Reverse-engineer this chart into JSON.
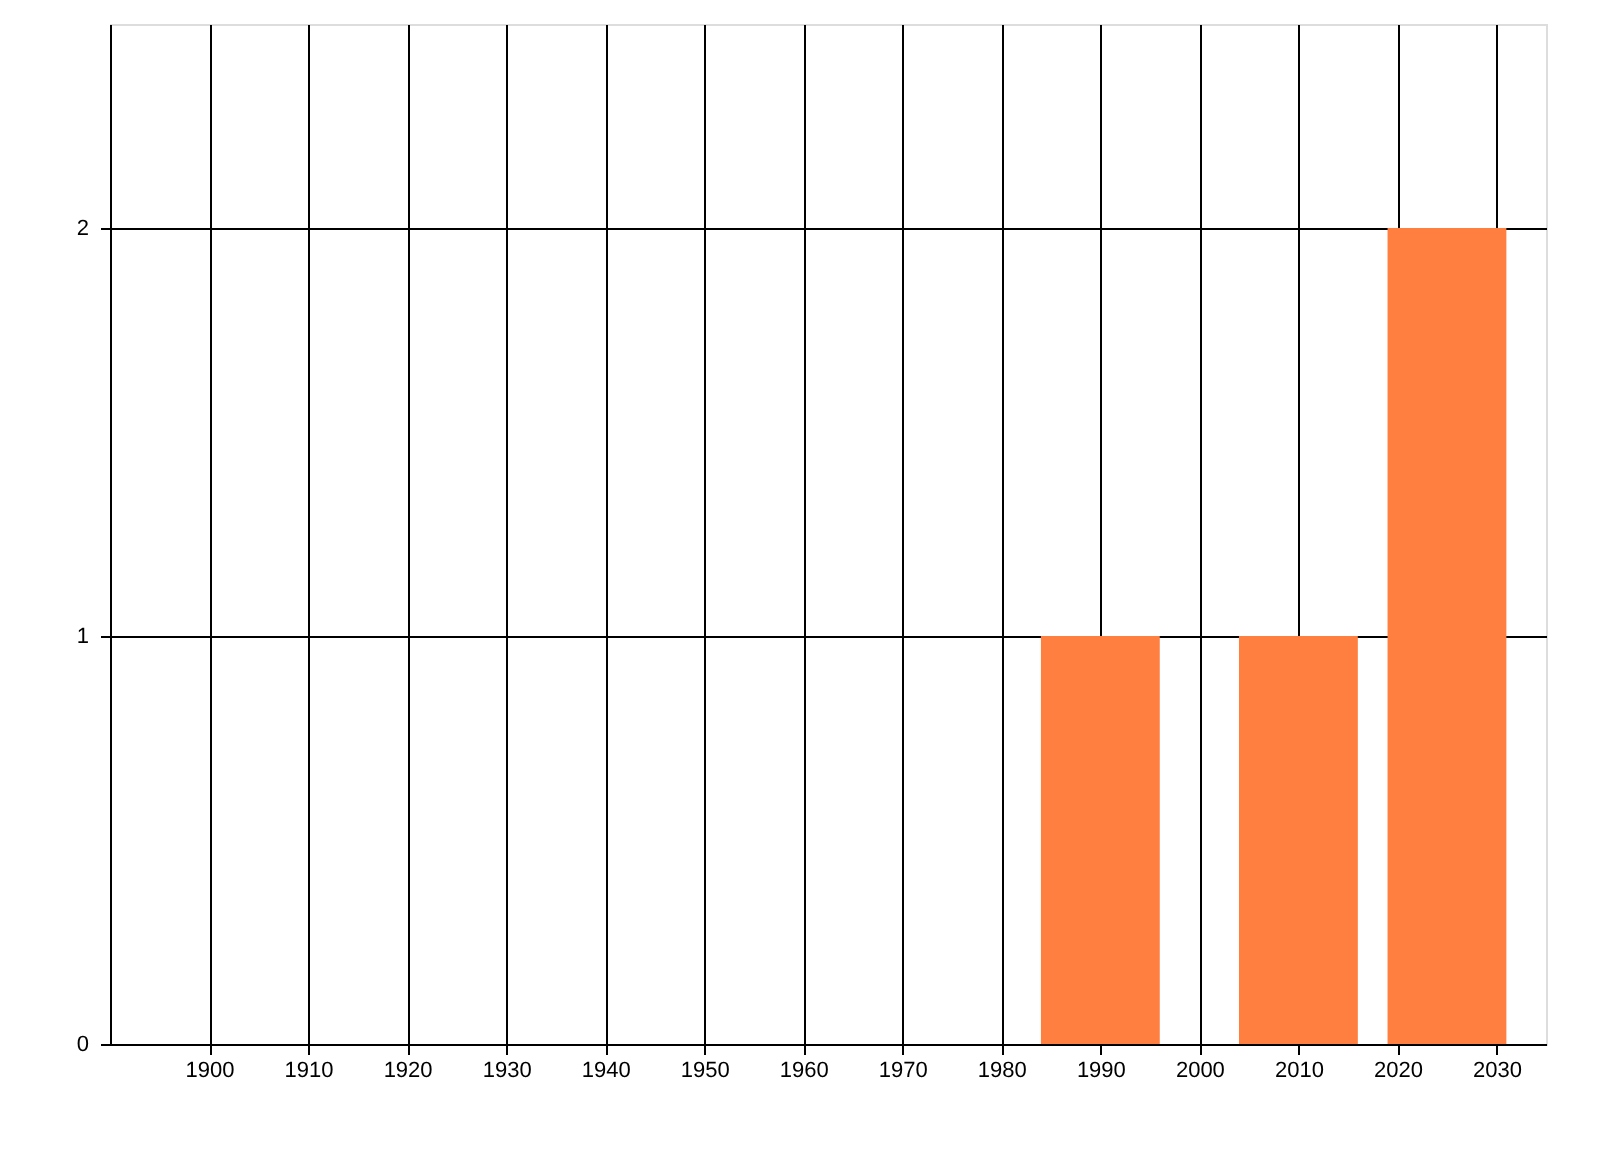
{
  "chart_data": {
    "type": "bar",
    "x": [
      1990,
      2010,
      2025
    ],
    "series": [
      {
        "color": "#ff7f41",
        "values": [
          1,
          1,
          2
        ]
      }
    ],
    "xlim": [
      1890,
      2035
    ],
    "xticks": [
      1900,
      1910,
      1920,
      1930,
      1940,
      1950,
      1960,
      1970,
      1980,
      1990,
      2000,
      2010,
      2020,
      2030
    ],
    "ylim": [
      0,
      2.5
    ],
    "yticks": [
      0,
      1,
      2
    ],
    "grid": true
  }
}
